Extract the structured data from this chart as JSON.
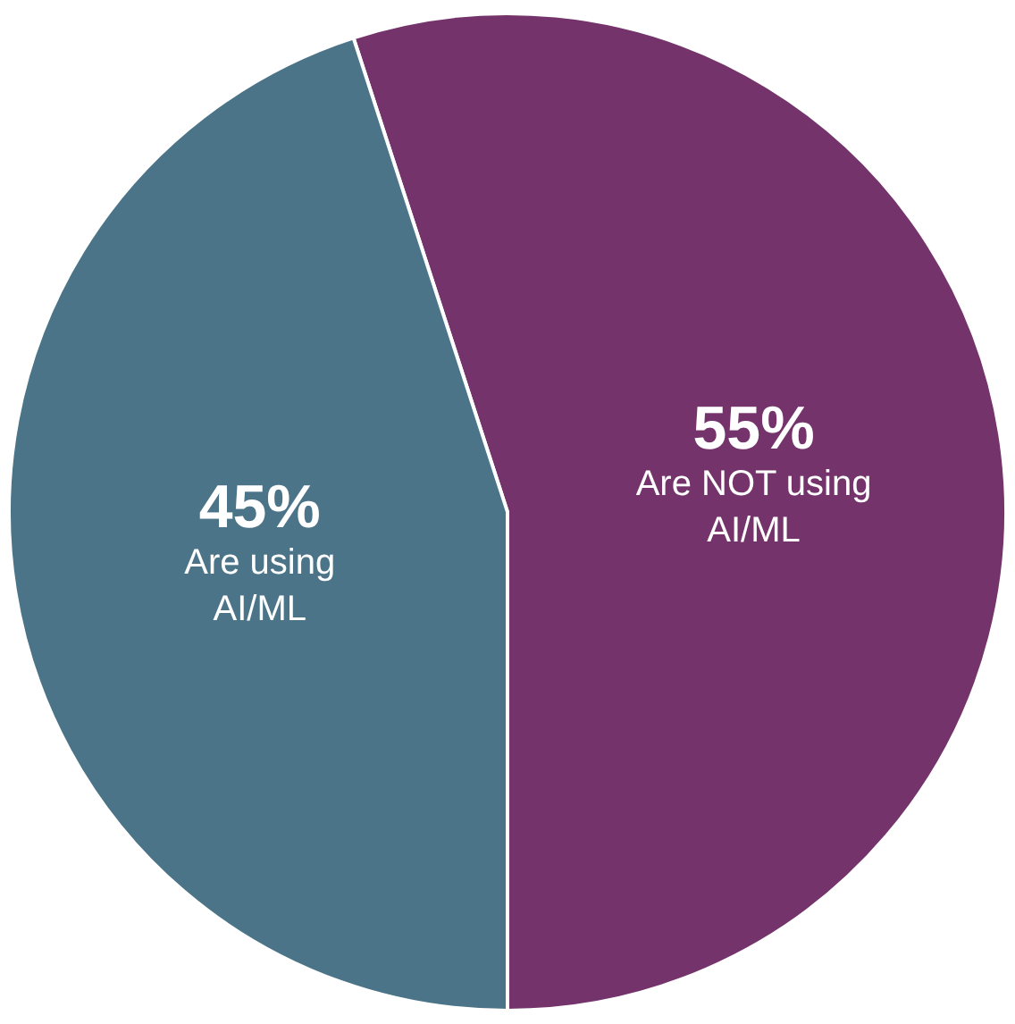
{
  "chart_data": {
    "type": "pie",
    "categories": [
      "Are NOT using AI/ML",
      "Are using AI/ML"
    ],
    "values": [
      55,
      45
    ],
    "colors": [
      "#74336a",
      "#4b7488"
    ],
    "value_labels": [
      "55%",
      "45%"
    ],
    "legend": false
  }
}
